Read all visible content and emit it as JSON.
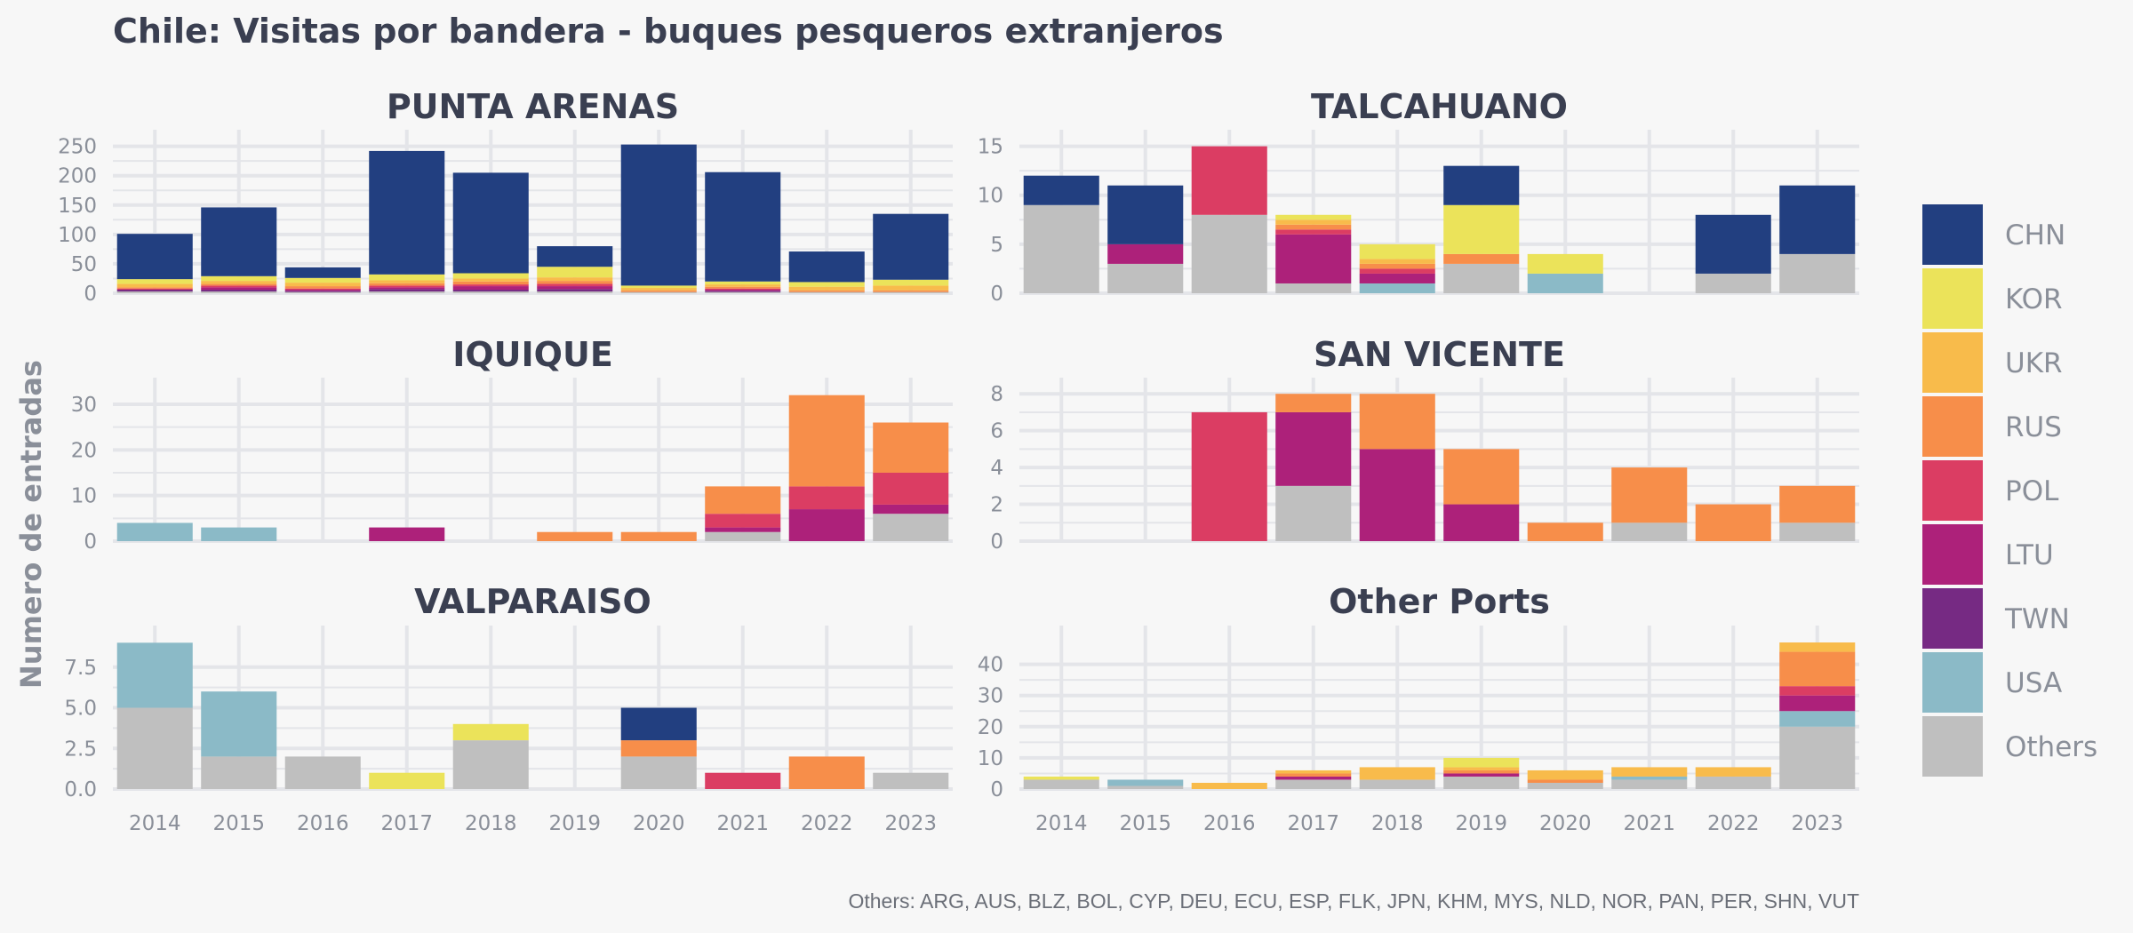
{
  "chart_data": {
    "type": "bar",
    "stacked": true,
    "title": "Chile: Visitas por bandera - buques pesqueros extranjeros",
    "ylabel": "Numero de entradas",
    "caption": "Others: ARG, AUS, BLZ, BOL, CYP, DEU, ECU, ESP, FLK, JPN, KHM, MYS, NLD, NOR, PAN, PER, SHN, VUT",
    "years": [
      "2014",
      "2015",
      "2016",
      "2017",
      "2018",
      "2019",
      "2020",
      "2021",
      "2022",
      "2023"
    ],
    "legend": {
      "position": "right",
      "entries": [
        {
          "key": "CHN",
          "label": "CHN",
          "color": "#223f80"
        },
        {
          "key": "KOR",
          "label": "KOR",
          "color": "#ebe35a"
        },
        {
          "key": "UKR",
          "label": "UKR",
          "color": "#f8bb4b"
        },
        {
          "key": "RUS",
          "label": "RUS",
          "color": "#f78e4a"
        },
        {
          "key": "POL",
          "label": "POL",
          "color": "#db3d63"
        },
        {
          "key": "LTU",
          "label": "LTU",
          "color": "#ad217a"
        },
        {
          "key": "TWN",
          "label": "TWN",
          "color": "#762a83"
        },
        {
          "key": "USA",
          "label": "USA",
          "color": "#8bbac7"
        },
        {
          "key": "Others",
          "label": "Others",
          "color": "#bfbfbf"
        }
      ]
    },
    "stack_order": [
      "Others",
      "USA",
      "TWN",
      "LTU",
      "POL",
      "RUS",
      "UKR",
      "KOR",
      "CHN"
    ],
    "panels": [
      {
        "title": "PUNTA ARENAS",
        "yticks": [
          0,
          50,
          100,
          150,
          200,
          250
        ],
        "ytick_labels": [
          "0",
          "50",
          "100",
          "150",
          "200",
          "250"
        ],
        "ylim": [
          0,
          260
        ],
        "x_labels_visible": false,
        "bars": [
          {
            "year": "2014",
            "Others": 3,
            "TWN": 3,
            "LTU": 0,
            "POL": 2,
            "RUS": 2,
            "UKR": 6,
            "KOR": 8,
            "CHN": 77
          },
          {
            "year": "2015",
            "Others": 3,
            "TWN": 3,
            "LTU": 4,
            "POL": 3,
            "RUS": 3,
            "UKR": 5,
            "KOR": 8,
            "CHN": 117
          },
          {
            "year": "2016",
            "Others": 2,
            "TWN": 2,
            "LTU": 2,
            "POL": 2,
            "RUS": 4,
            "UKR": 6,
            "KOR": 8,
            "CHN": 18
          },
          {
            "year": "2017",
            "Others": 3,
            "TWN": 4,
            "LTU": 3,
            "POL": 3,
            "RUS": 4,
            "UKR": 5,
            "KOR": 10,
            "CHN": 210
          },
          {
            "year": "2018",
            "Others": 3,
            "TWN": 3,
            "LTU": 6,
            "POL": 3,
            "RUS": 5,
            "UKR": 5,
            "KOR": 9,
            "CHN": 171
          },
          {
            "year": "2019",
            "Others": 3,
            "TWN": 4,
            "LTU": 5,
            "POL": 4,
            "RUS": 5,
            "UKR": 6,
            "KOR": 18,
            "CHN": 35
          },
          {
            "year": "2020",
            "Others": 2,
            "TWN": 0,
            "LTU": 0,
            "POL": 0,
            "RUS": 3,
            "UKR": 4,
            "KOR": 4,
            "CHN": 240
          },
          {
            "year": "2021",
            "Others": 2,
            "TWN": 2,
            "LTU": 2,
            "POL": 2,
            "RUS": 3,
            "UKR": 4,
            "KOR": 5,
            "CHN": 186
          },
          {
            "year": "2022",
            "Others": 2,
            "TWN": 0,
            "LTU": 0,
            "POL": 0,
            "RUS": 3,
            "UKR": 6,
            "KOR": 8,
            "CHN": 52
          },
          {
            "year": "2023",
            "Others": 2,
            "TWN": 0,
            "LTU": 0,
            "POL": 0,
            "RUS": 3,
            "UKR": 8,
            "KOR": 10,
            "CHN": 112
          }
        ]
      },
      {
        "title": "TALCAHUANO",
        "yticks": [
          0,
          5,
          10,
          15
        ],
        "ytick_labels": [
          "0",
          "5",
          "10",
          "15"
        ],
        "ylim": [
          0,
          15.6
        ],
        "x_labels_visible": false,
        "bars": [
          {
            "year": "2014",
            "Others": 9,
            "CHN": 3
          },
          {
            "year": "2015",
            "Others": 3,
            "LTU": 2,
            "CHN": 6
          },
          {
            "year": "2016",
            "Others": 8,
            "POL": 7
          },
          {
            "year": "2017",
            "Others": 1,
            "LTU": 5,
            "POL": 0.5,
            "RUS": 0.5,
            "UKR": 0.5,
            "KOR": 0.5
          },
          {
            "year": "2018",
            "USA": 1,
            "LTU": 1,
            "POL": 0.5,
            "RUS": 0.5,
            "UKR": 0.5,
            "KOR": 1.5
          },
          {
            "year": "2019",
            "Others": 3,
            "RUS": 1,
            "KOR": 5,
            "CHN": 4
          },
          {
            "year": "2020",
            "USA": 2,
            "KOR": 2
          },
          {
            "year": "2021"
          },
          {
            "year": "2022",
            "Others": 2,
            "CHN": 6
          },
          {
            "year": "2023",
            "Others": 4,
            "CHN": 7
          }
        ]
      },
      {
        "title": "IQUIQUE",
        "yticks": [
          0,
          10,
          20,
          30
        ],
        "ytick_labels": [
          "0",
          "10",
          "20",
          "30"
        ],
        "ylim": [
          0,
          33.5
        ],
        "x_labels_visible": false,
        "bars": [
          {
            "year": "2014",
            "USA": 4
          },
          {
            "year": "2015",
            "USA": 3
          },
          {
            "year": "2016"
          },
          {
            "year": "2017",
            "LTU": 3
          },
          {
            "year": "2018"
          },
          {
            "year": "2019",
            "RUS": 2
          },
          {
            "year": "2020",
            "RUS": 2
          },
          {
            "year": "2021",
            "Others": 2,
            "LTU": 1,
            "POL": 3,
            "RUS": 6
          },
          {
            "year": "2022",
            "LTU": 7,
            "POL": 5,
            "RUS": 20
          },
          {
            "year": "2023",
            "Others": 6,
            "LTU": 2,
            "POL": 7,
            "RUS": 11
          }
        ]
      },
      {
        "title": "SAN VICENTE",
        "yticks": [
          0,
          2,
          4,
          6,
          8
        ],
        "ytick_labels": [
          "0",
          "2",
          "4",
          "6",
          "8"
        ],
        "ylim": [
          0,
          8.3
        ],
        "x_labels_visible": false,
        "bars": [
          {
            "year": "2014"
          },
          {
            "year": "2015"
          },
          {
            "year": "2016",
            "POL": 7
          },
          {
            "year": "2017",
            "Others": 3,
            "LTU": 4,
            "RUS": 1
          },
          {
            "year": "2018",
            "LTU": 5,
            "RUS": 3
          },
          {
            "year": "2019",
            "LTU": 2,
            "RUS": 3
          },
          {
            "year": "2020",
            "RUS": 1
          },
          {
            "year": "2021",
            "Others": 1,
            "RUS": 3
          },
          {
            "year": "2022",
            "RUS": 2
          },
          {
            "year": "2023",
            "Others": 1,
            "RUS": 2
          }
        ]
      },
      {
        "title": "VALPARAISO",
        "yticks": [
          0,
          2.5,
          5,
          7.5
        ],
        "ytick_labels": [
          "0.0",
          "2.5",
          "5.0",
          "7.5"
        ],
        "ylim": [
          0,
          9.4
        ],
        "x_labels_visible": true,
        "bars": [
          {
            "year": "2014",
            "Others": 5,
            "USA": 4
          },
          {
            "year": "2015",
            "Others": 2,
            "USA": 4
          },
          {
            "year": "2016",
            "Others": 2
          },
          {
            "year": "2017",
            "KOR": 1
          },
          {
            "year": "2018",
            "Others": 3,
            "KOR": 1
          },
          {
            "year": "2019"
          },
          {
            "year": "2020",
            "Others": 2,
            "RUS": 1,
            "CHN": 2
          },
          {
            "year": "2021",
            "POL": 1
          },
          {
            "year": "2022",
            "RUS": 2
          },
          {
            "year": "2023",
            "Others": 1
          }
        ]
      },
      {
        "title": "Other Ports",
        "yticks": [
          0,
          10,
          20,
          30,
          40
        ],
        "ytick_labels": [
          "0",
          "10",
          "20",
          "30",
          "40"
        ],
        "ylim": [
          0,
          49
        ],
        "x_labels_visible": true,
        "bars": [
          {
            "year": "2014",
            "Others": 3,
            "KOR": 1
          },
          {
            "year": "2015",
            "Others": 1,
            "USA": 2
          },
          {
            "year": "2016",
            "UKR": 2
          },
          {
            "year": "2017",
            "Others": 3,
            "LTU": 1,
            "RUS": 1,
            "UKR": 1
          },
          {
            "year": "2018",
            "Others": 3,
            "UKR": 4
          },
          {
            "year": "2019",
            "Others": 4,
            "LTU": 1,
            "RUS": 1,
            "UKR": 1,
            "KOR": 3
          },
          {
            "year": "2020",
            "Others": 2,
            "RUS": 1,
            "UKR": 3
          },
          {
            "year": "2021",
            "Others": 3,
            "USA": 1,
            "UKR": 3
          },
          {
            "year": "2022",
            "Others": 4,
            "UKR": 3
          },
          {
            "year": "2023",
            "Others": 20,
            "USA": 5,
            "LTU": 5,
            "POL": 3,
            "RUS": 11,
            "UKR": 3
          }
        ]
      }
    ]
  }
}
